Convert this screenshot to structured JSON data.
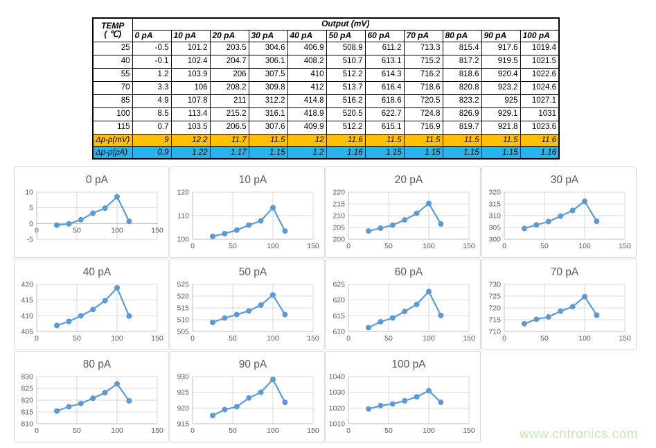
{
  "watermark": "www.cntronics.com",
  "colors": {
    "series": "#5B9BD5",
    "gridline": "#D9D9D9",
    "axis_text": "#595959",
    "summary_mv_bg": "#FFC000",
    "summary_pa_bg": "#25B4EC",
    "watermark_green": "#C9E7B2"
  },
  "table": {
    "corner_header": {
      "line1": "TEMP",
      "line2": "( ℃)"
    },
    "output_header": "Output (mV)",
    "col_headers": [
      "0 pA",
      "10 pA",
      "20 pA",
      "30 pA",
      "40 pA",
      "50 pA",
      "60 pA",
      "70 pA",
      "80 pA",
      "90 pA",
      "100 pA"
    ],
    "rows": [
      {
        "temp": "25",
        "values": [
          "-0.5",
          "101.2",
          "203.5",
          "304.6",
          "406.9",
          "508.9",
          "611.2",
          "713.3",
          "815.4",
          "917.6",
          "1019.4"
        ]
      },
      {
        "temp": "40",
        "values": [
          "-0.1",
          "102.4",
          "204.7",
          "306.1",
          "408.2",
          "510.7",
          "613.1",
          "715.2",
          "817.2",
          "919.5",
          "1021.5"
        ]
      },
      {
        "temp": "55",
        "values": [
          "1.2",
          "103.9",
          "206",
          "307.5",
          "410",
          "512.2",
          "614.3",
          "716.2",
          "818.6",
          "920.4",
          "1022.6"
        ]
      },
      {
        "temp": "70",
        "values": [
          "3.3",
          "106",
          "208.2",
          "309.8",
          "412",
          "513.7",
          "616.4",
          "718.6",
          "820.8",
          "923.2",
          "1024.6"
        ]
      },
      {
        "temp": "85",
        "values": [
          "4.9",
          "107.8",
          "211",
          "312.2",
          "414.8",
          "516.2",
          "618.6",
          "720.5",
          "823.2",
          "925",
          "1027.1"
        ]
      },
      {
        "temp": "100",
        "values": [
          "8.5",
          "113.4",
          "215.2",
          "316.1",
          "418.9",
          "520.5",
          "622.7",
          "724.8",
          "826.9",
          "929.1",
          "1031"
        ]
      },
      {
        "temp": "115",
        "values": [
          "0.7",
          "103.5",
          "206.5",
          "307.6",
          "409.9",
          "512.2",
          "615.1",
          "716.9",
          "819.7",
          "921.8",
          "1023.6"
        ]
      }
    ],
    "summary_rows": [
      {
        "label": "Δp-p(mV)",
        "bg": "#FFC000",
        "values": [
          "9",
          "12.2",
          "11.7",
          "11.5",
          "12",
          "11.6",
          "11.5",
          "11.5",
          "11.5",
          "11.5",
          "11.6"
        ]
      },
      {
        "label": "Δp-p(pA)",
        "bg": "#25B4EC",
        "values": [
          "0.9",
          "1.22",
          "1.17",
          "1.15",
          "1.2",
          "1.16",
          "1.15",
          "1.15",
          "1.15",
          "1.15",
          "1.16"
        ]
      }
    ]
  },
  "chart_data": [
    {
      "type": "line",
      "title": "0 pA",
      "xlabel": "",
      "ylabel": "",
      "legend": false,
      "grid": true,
      "x": [
        25,
        40,
        55,
        70,
        85,
        100,
        115
      ],
      "values": [
        -0.5,
        -0.1,
        1.2,
        3.3,
        4.9,
        8.5,
        0.7
      ],
      "xlim": [
        0,
        150
      ],
      "ylim": [
        -5,
        10
      ],
      "xticks": [
        0,
        50,
        100,
        150
      ],
      "yticks": [
        -5,
        0,
        5,
        10
      ]
    },
    {
      "type": "line",
      "title": "10 pA",
      "xlabel": "",
      "ylabel": "",
      "legend": false,
      "grid": true,
      "x": [
        25,
        40,
        55,
        70,
        85,
        100,
        115
      ],
      "values": [
        101.2,
        102.4,
        103.9,
        106,
        107.8,
        113.4,
        103.5
      ],
      "xlim": [
        0,
        150
      ],
      "ylim": [
        100,
        120
      ],
      "xticks": [
        0,
        50,
        100,
        150
      ],
      "yticks": [
        100,
        110,
        120
      ]
    },
    {
      "type": "line",
      "title": "20 pA",
      "xlabel": "",
      "ylabel": "",
      "legend": false,
      "grid": true,
      "x": [
        25,
        40,
        55,
        70,
        85,
        100,
        115
      ],
      "values": [
        203.5,
        204.7,
        206,
        208.2,
        211,
        215.2,
        206.5
      ],
      "xlim": [
        0,
        150
      ],
      "ylim": [
        200,
        220
      ],
      "xticks": [
        0,
        50,
        100,
        150
      ],
      "yticks": [
        200,
        205,
        210,
        215,
        220
      ]
    },
    {
      "type": "line",
      "title": "30 pA",
      "xlabel": "",
      "ylabel": "",
      "legend": false,
      "grid": true,
      "x": [
        25,
        40,
        55,
        70,
        85,
        100,
        115
      ],
      "values": [
        304.6,
        306.1,
        307.5,
        309.8,
        312.2,
        316.1,
        307.6
      ],
      "xlim": [
        0,
        150
      ],
      "ylim": [
        300,
        320
      ],
      "xticks": [
        0,
        50,
        100,
        150
      ],
      "yticks": [
        300,
        305,
        310,
        315,
        320
      ]
    },
    {
      "type": "line",
      "title": "40 pA",
      "xlabel": "",
      "ylabel": "",
      "legend": false,
      "grid": true,
      "x": [
        25,
        40,
        55,
        70,
        85,
        100,
        115
      ],
      "values": [
        406.9,
        408.2,
        410,
        412,
        414.8,
        418.9,
        409.9
      ],
      "xlim": [
        0,
        150
      ],
      "ylim": [
        405,
        420
      ],
      "xticks": [
        0,
        50,
        100,
        150
      ],
      "yticks": [
        405,
        410,
        415,
        420
      ]
    },
    {
      "type": "line",
      "title": "50 pA",
      "xlabel": "",
      "ylabel": "",
      "legend": false,
      "grid": true,
      "x": [
        25,
        40,
        55,
        70,
        85,
        100,
        115
      ],
      "values": [
        508.9,
        510.7,
        512.2,
        513.7,
        516.2,
        520.5,
        512.2
      ],
      "xlim": [
        0,
        150
      ],
      "ylim": [
        505,
        525
      ],
      "xticks": [
        0,
        50,
        100,
        150
      ],
      "yticks": [
        505,
        510,
        515,
        520,
        525
      ]
    },
    {
      "type": "line",
      "title": "60 pA",
      "xlabel": "",
      "ylabel": "",
      "legend": false,
      "grid": true,
      "x": [
        25,
        40,
        55,
        70,
        85,
        100,
        115
      ],
      "values": [
        611.2,
        613.1,
        614.3,
        616.4,
        618.6,
        622.7,
        615.1
      ],
      "xlim": [
        0,
        150
      ],
      "ylim": [
        610,
        625
      ],
      "xticks": [
        0,
        50,
        100,
        150
      ],
      "yticks": [
        610,
        615,
        620,
        625
      ]
    },
    {
      "type": "line",
      "title": "70 pA",
      "xlabel": "",
      "ylabel": "",
      "legend": false,
      "grid": true,
      "x": [
        25,
        40,
        55,
        70,
        85,
        100,
        115
      ],
      "values": [
        713.3,
        715.2,
        716.2,
        718.6,
        720.5,
        724.8,
        716.9
      ],
      "xlim": [
        0,
        150
      ],
      "ylim": [
        710,
        730
      ],
      "xticks": [
        0,
        50,
        100,
        150
      ],
      "yticks": [
        710,
        715,
        720,
        725,
        730
      ]
    },
    {
      "type": "line",
      "title": "80 pA",
      "xlabel": "",
      "ylabel": "",
      "legend": false,
      "grid": true,
      "x": [
        25,
        40,
        55,
        70,
        85,
        100,
        115
      ],
      "values": [
        815.4,
        817.2,
        818.6,
        820.8,
        823.2,
        826.9,
        819.7
      ],
      "xlim": [
        0,
        150
      ],
      "ylim": [
        810,
        830
      ],
      "xticks": [
        0,
        50,
        100,
        150
      ],
      "yticks": [
        810,
        815,
        820,
        825,
        830
      ]
    },
    {
      "type": "line",
      "title": "90 pA",
      "xlabel": "",
      "ylabel": "",
      "legend": false,
      "grid": true,
      "x": [
        25,
        40,
        55,
        70,
        85,
        100,
        115
      ],
      "values": [
        917.6,
        919.5,
        920.4,
        923.2,
        925,
        929.1,
        921.8
      ],
      "xlim": [
        0,
        150
      ],
      "ylim": [
        915,
        930
      ],
      "xticks": [
        0,
        50,
        100,
        150
      ],
      "yticks": [
        915,
        920,
        925,
        930
      ]
    },
    {
      "type": "line",
      "title": "100 pA",
      "xlabel": "",
      "ylabel": "",
      "legend": false,
      "grid": true,
      "x": [
        25,
        40,
        55,
        70,
        85,
        100,
        115
      ],
      "values": [
        1019.4,
        1021.5,
        1022.6,
        1024.6,
        1027.1,
        1031,
        1023.6
      ],
      "xlim": [
        0,
        150
      ],
      "ylim": [
        1010,
        1040
      ],
      "xticks": [
        0,
        50,
        100,
        150
      ],
      "yticks": [
        1010,
        1020,
        1030,
        1040
      ]
    }
  ]
}
